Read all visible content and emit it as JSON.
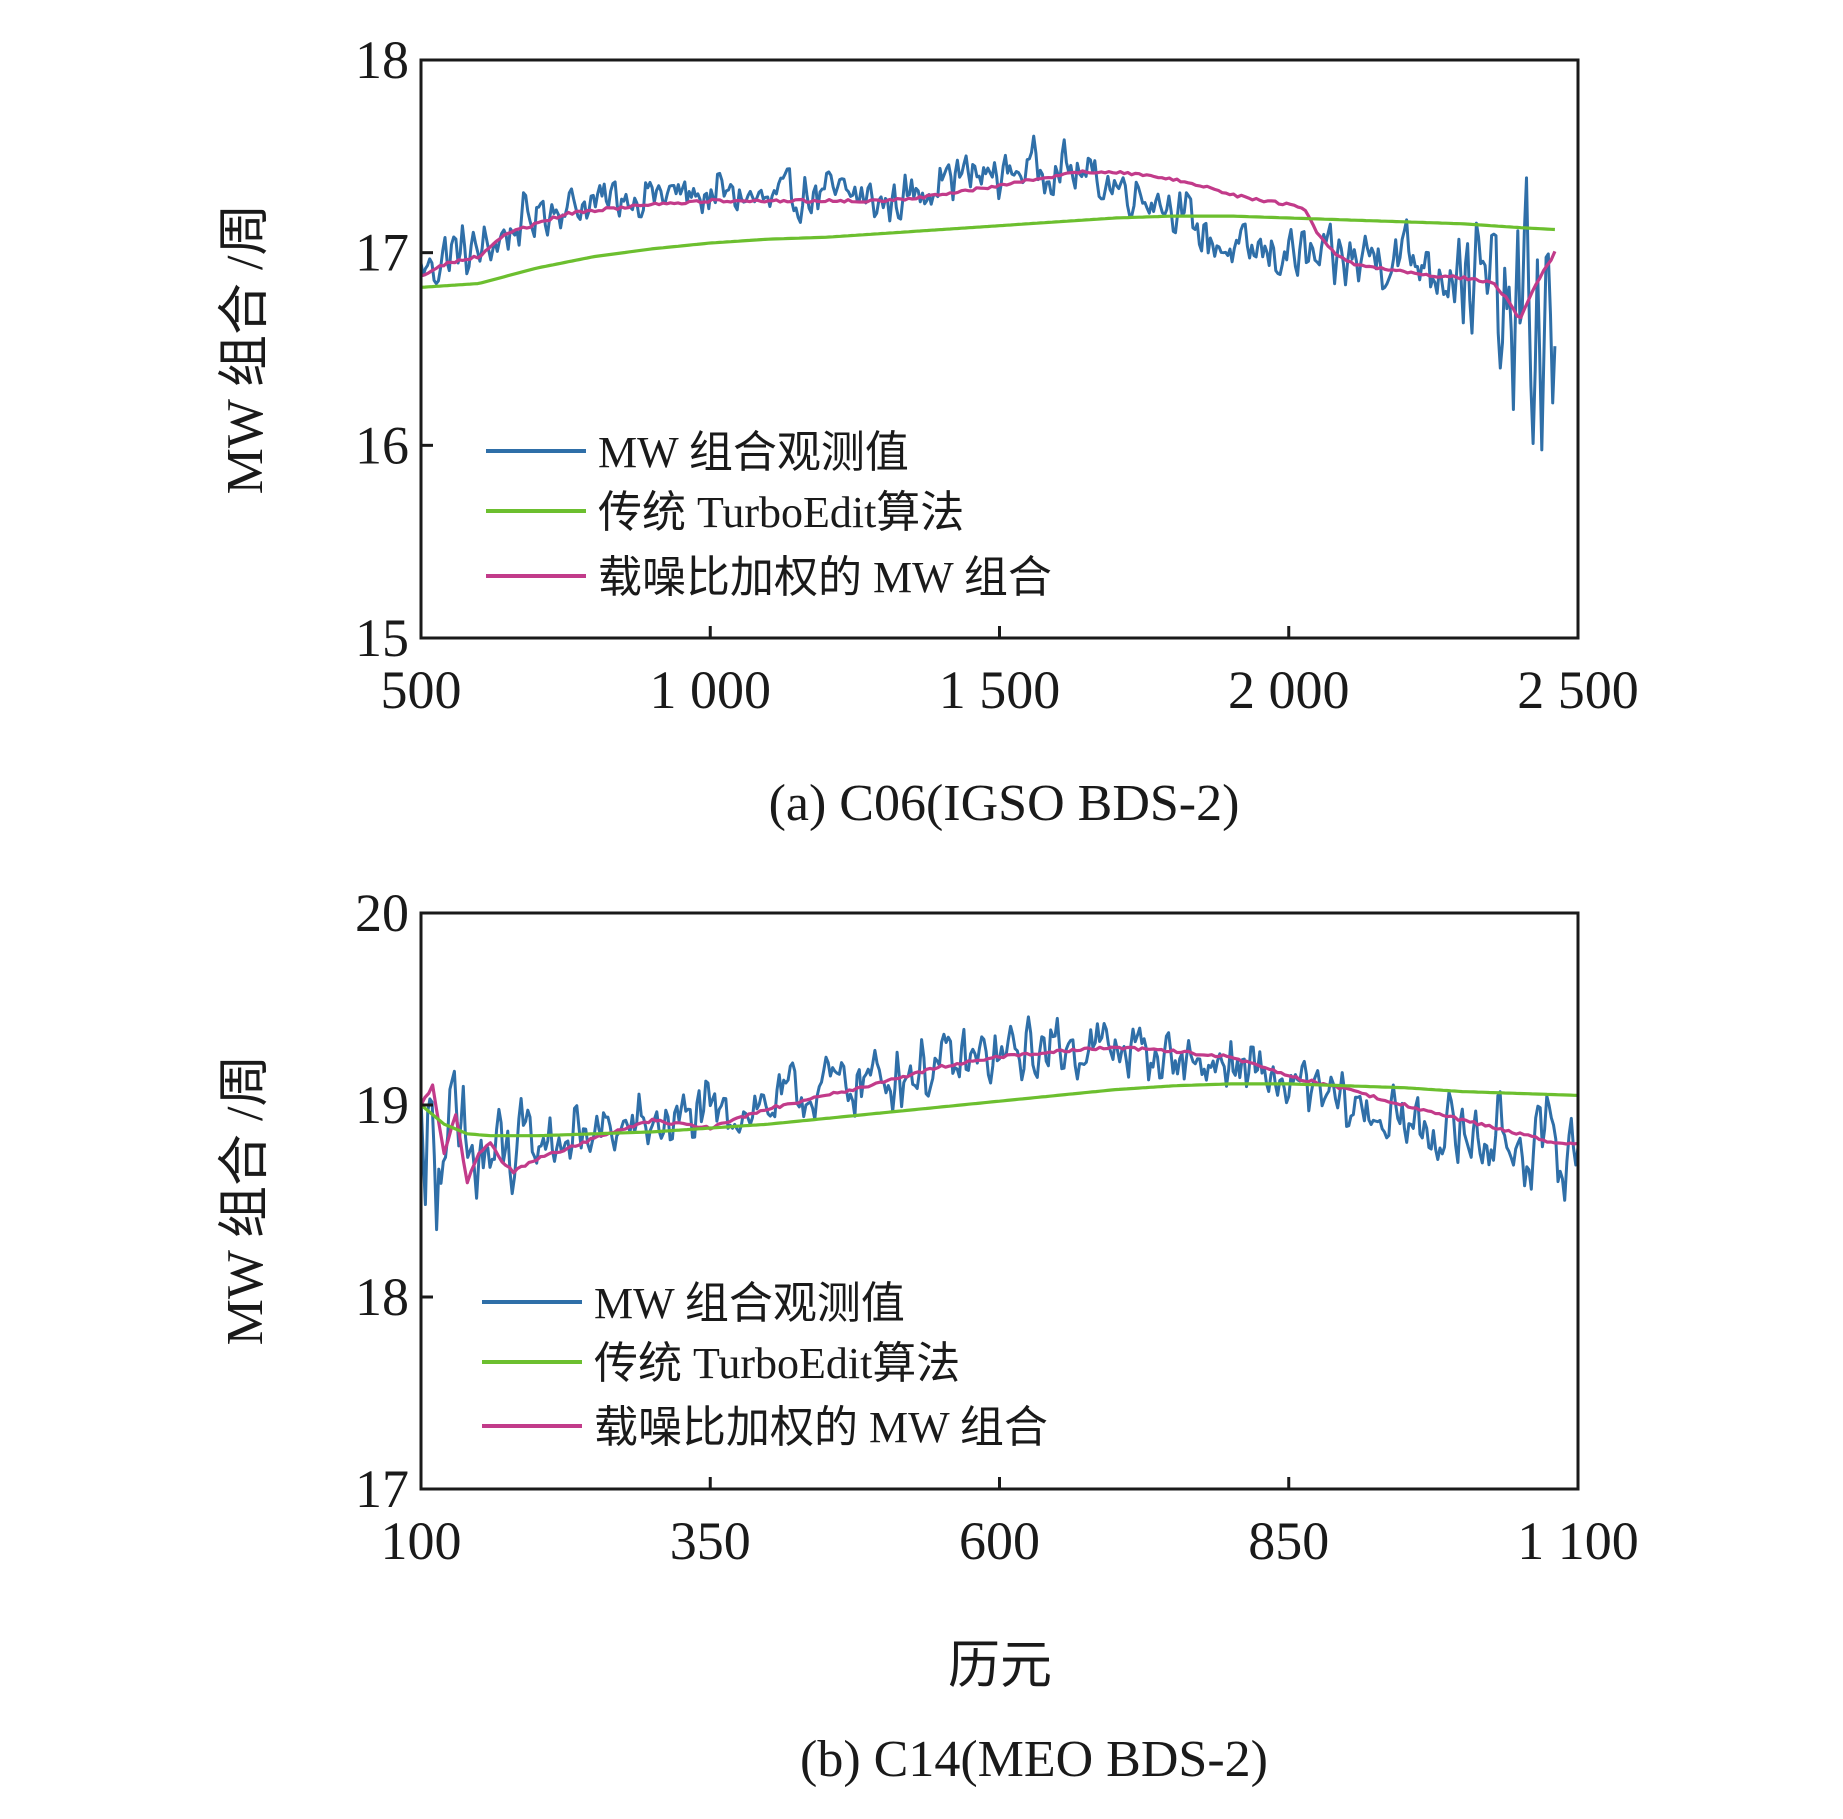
{
  "colors": {
    "observed": "#2f6fa8",
    "traditional": "#6cbf2f",
    "weighted": "#c23b8a"
  },
  "xlabel_shared": "历元",
  "chart_data": [
    {
      "type": "line",
      "title": "(a) C06(IGSO BDS-2)",
      "xlabel": "",
      "ylabel": "MW 组合 /周",
      "xlim": [
        500,
        2500
      ],
      "ylim": [
        15,
        18
      ],
      "xticks": [
        500,
        1000,
        1500,
        2000,
        2500
      ],
      "xtick_labels": [
        "500",
        "1 000",
        "1 500",
        "2 000",
        "2 500"
      ],
      "yticks": [
        15,
        16,
        17,
        18
      ],
      "ytick_labels": [
        "15",
        "16",
        "17",
        "18"
      ],
      "legend": [
        "MW 组合观测值",
        "传统 TurboEdit算法",
        "载噪比加权的 MW 组合"
      ],
      "series": [
        {
          "name": "MW 组合观测值",
          "color_key": "observed",
          "noisy": true,
          "x": [
            500,
            550,
            600,
            650,
            700,
            750,
            800,
            850,
            900,
            950,
            1000,
            1050,
            1100,
            1150,
            1200,
            1250,
            1300,
            1350,
            1400,
            1450,
            1500,
            1550,
            1600,
            1650,
            1700,
            1750,
            1800,
            1850,
            1900,
            1950,
            2000,
            2050,
            2100,
            2150,
            2200,
            2250,
            2300,
            2350,
            2380,
            2400,
            2420,
            2440,
            2460
          ],
          "y": [
            16.9,
            17.0,
            17.0,
            17.1,
            17.2,
            17.25,
            17.25,
            17.3,
            17.3,
            17.3,
            17.3,
            17.3,
            17.25,
            17.3,
            17.3,
            17.3,
            17.25,
            17.3,
            17.4,
            17.4,
            17.4,
            17.45,
            17.45,
            17.4,
            17.35,
            17.3,
            17.25,
            17.1,
            17.0,
            17.0,
            17.0,
            16.95,
            16.95,
            17.0,
            17.0,
            16.95,
            16.9,
            16.8,
            16.6,
            16.6,
            16.7,
            16.5,
            16.5
          ],
          "noise_amp": [
            0.12,
            0.12,
            0.1,
            0.1,
            0.1,
            0.08,
            0.09,
            0.1,
            0.1,
            0.1,
            0.1,
            0.1,
            0.1,
            0.1,
            0.1,
            0.09,
            0.09,
            0.09,
            0.1,
            0.1,
            0.1,
            0.1,
            0.1,
            0.1,
            0.09,
            0.09,
            0.09,
            0.1,
            0.1,
            0.1,
            0.12,
            0.12,
            0.13,
            0.15,
            0.15,
            0.15,
            0.2,
            0.3,
            0.45,
            0.55,
            0.65,
            0.6,
            0.45
          ]
        },
        {
          "name": "传统 TurboEdit算法",
          "color_key": "traditional",
          "x": [
            500,
            600,
            700,
            800,
            900,
            1000,
            1100,
            1200,
            1300,
            1400,
            1500,
            1600,
            1700,
            1800,
            1900,
            2000,
            2100,
            2200,
            2300,
            2400,
            2460
          ],
          "y": [
            16.82,
            16.84,
            16.92,
            16.98,
            17.02,
            17.05,
            17.07,
            17.08,
            17.1,
            17.12,
            17.14,
            17.16,
            17.18,
            17.19,
            17.19,
            17.18,
            17.17,
            17.16,
            17.15,
            17.13,
            17.12
          ]
        },
        {
          "name": "载噪比加权的 MW 组合",
          "color_key": "weighted",
          "x": [
            500,
            550,
            600,
            650,
            700,
            750,
            800,
            900,
            1000,
            1100,
            1200,
            1300,
            1350,
            1400,
            1500,
            1600,
            1650,
            1700,
            1750,
            1800,
            1850,
            1900,
            2000,
            2030,
            2050,
            2080,
            2100,
            2200,
            2250,
            2300,
            2350,
            2380,
            2400,
            2420,
            2440,
            2460
          ],
          "y": [
            16.88,
            16.95,
            16.98,
            17.1,
            17.15,
            17.2,
            17.22,
            17.25,
            17.27,
            17.27,
            17.27,
            17.27,
            17.28,
            17.3,
            17.35,
            17.4,
            17.42,
            17.42,
            17.4,
            17.38,
            17.35,
            17.3,
            17.25,
            17.22,
            17.1,
            17.0,
            16.95,
            16.9,
            16.88,
            16.87,
            16.85,
            16.75,
            16.65,
            16.8,
            16.9,
            17.0
          ]
        }
      ]
    },
    {
      "type": "line",
      "title": "(b) C14(MEO BDS-2)",
      "xlabel": "历元",
      "ylabel": "MW 组合 /周",
      "xlim": [
        100,
        1100
      ],
      "ylim": [
        17,
        20
      ],
      "xticks": [
        100,
        350,
        600,
        850,
        1100
      ],
      "xtick_labels": [
        "100",
        "350",
        "600",
        "850",
        "1 100"
      ],
      "yticks": [
        17,
        18,
        19,
        20
      ],
      "ytick_labels": [
        "17",
        "18",
        "19",
        "20"
      ],
      "legend": [
        "MW 组合观测值",
        "传统 TurboEdit算法",
        "载噪比加权的 MW 组合"
      ],
      "series": [
        {
          "name": "MW 组合观测值",
          "color_key": "observed",
          "noisy": true,
          "x": [
            100,
            120,
            140,
            160,
            180,
            200,
            250,
            300,
            350,
            400,
            450,
            500,
            550,
            600,
            650,
            700,
            750,
            800,
            850,
            900,
            950,
            1000,
            1050,
            1100
          ],
          "y": [
            18.9,
            18.8,
            18.7,
            18.7,
            18.75,
            18.8,
            18.85,
            18.9,
            18.95,
            19.0,
            19.1,
            19.15,
            19.2,
            19.25,
            19.3,
            19.3,
            19.25,
            19.2,
            19.1,
            19.0,
            18.9,
            18.85,
            18.8,
            18.75
          ],
          "noise_amp": [
            0.3,
            0.35,
            0.3,
            0.25,
            0.2,
            0.15,
            0.12,
            0.12,
            0.12,
            0.13,
            0.13,
            0.13,
            0.13,
            0.13,
            0.12,
            0.12,
            0.12,
            0.12,
            0.12,
            0.12,
            0.13,
            0.15,
            0.17,
            0.2
          ]
        },
        {
          "name": "传统 TurboEdit算法",
          "color_key": "traditional",
          "x": [
            100,
            120,
            140,
            160,
            200,
            250,
            300,
            350,
            400,
            450,
            500,
            550,
            600,
            650,
            700,
            750,
            800,
            850,
            900,
            950,
            1000,
            1050,
            1100
          ],
          "y": [
            19.0,
            18.9,
            18.85,
            18.84,
            18.84,
            18.85,
            18.86,
            18.88,
            18.9,
            18.93,
            18.96,
            18.99,
            19.02,
            19.05,
            19.08,
            19.1,
            19.11,
            19.11,
            19.1,
            19.09,
            19.07,
            19.06,
            19.05
          ]
        },
        {
          "name": "载噪比加权的 MW 组合",
          "color_key": "weighted",
          "x": [
            100,
            110,
            120,
            130,
            140,
            150,
            160,
            170,
            180,
            200,
            230,
            260,
            300,
            350,
            400,
            450,
            500,
            550,
            600,
            650,
            700,
            750,
            800,
            850,
            900,
            950,
            1000,
            1050,
            1080,
            1100
          ],
          "y": [
            19.0,
            19.1,
            18.75,
            18.95,
            18.6,
            18.75,
            18.8,
            18.7,
            18.65,
            18.72,
            18.78,
            18.85,
            18.92,
            18.88,
            18.98,
            19.05,
            19.12,
            19.2,
            19.25,
            19.28,
            19.3,
            19.28,
            19.25,
            19.15,
            19.08,
            19.0,
            18.92,
            18.85,
            18.8,
            18.8
          ]
        }
      ]
    }
  ]
}
